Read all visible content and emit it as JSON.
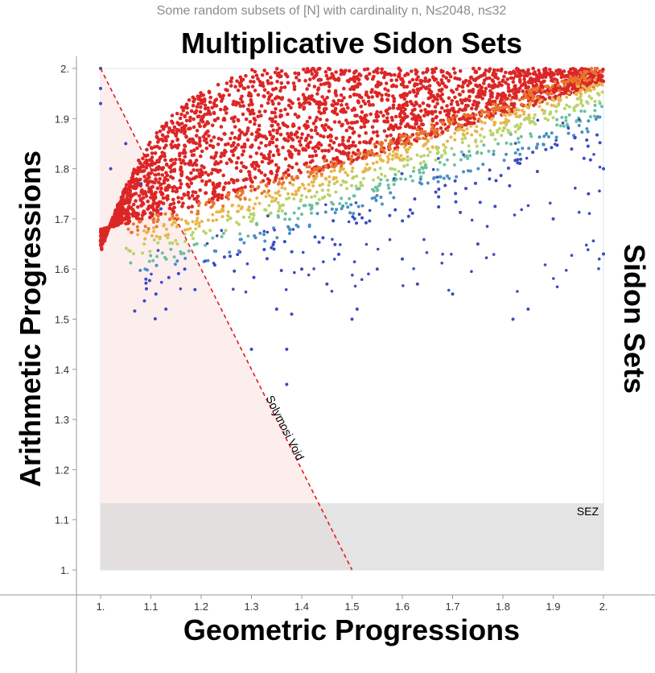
{
  "chart_data": {
    "type": "scatter",
    "subtitle": "Some random subsets of [N] with cardinality n, N≤2048, n≤32",
    "title": "Multiplicative Sidon Sets",
    "xlabel": "Geometric Progressions",
    "ylabel": "Arithmetic Progressions",
    "right_label": "Sidon Sets",
    "xlim": [
      1.0,
      2.0
    ],
    "ylim": [
      1.0,
      2.0
    ],
    "x_ticks": [
      "1.",
      "1.1",
      "1.2",
      "1.3",
      "1.4",
      "1.5",
      "1.6",
      "1.7",
      "1.8",
      "1.9",
      "2."
    ],
    "y_ticks": [
      "1.",
      "1.1",
      "1.2",
      "1.3",
      "1.4",
      "1.5",
      "1.6",
      "1.7",
      "1.8",
      "1.9",
      "2."
    ],
    "grid": false,
    "regions": {
      "solymosi_void": {
        "label": "Solymosi Void",
        "boundary_line": {
          "from": [
            1.0,
            2.0
          ],
          "to": [
            1.5,
            1.0
          ]
        },
        "color": "#fdeeee",
        "line_color": "#e41a1c"
      },
      "sez": {
        "label": "SEZ",
        "y_range": [
          1.0,
          1.133
        ],
        "color": "#d9d9d9"
      }
    },
    "color_scale": [
      "#3b4cc0",
      "#4a8fc4",
      "#6cc0a0",
      "#b9d36a",
      "#e8b64b",
      "#e8762f",
      "#dc2626"
    ],
    "dense_region_color": "#dc2626",
    "sample_points": [
      [
        1.0,
        2.0
      ],
      [
        1.0,
        1.96
      ],
      [
        1.0,
        1.93
      ],
      [
        1.02,
        1.8
      ],
      [
        1.05,
        1.85
      ],
      [
        1.08,
        1.77
      ],
      [
        1.12,
        1.72
      ],
      [
        1.13,
        1.52
      ],
      [
        1.09,
        1.58
      ],
      [
        1.11,
        1.55
      ],
      [
        1.3,
        1.44
      ],
      [
        1.37,
        1.44
      ],
      [
        1.37,
        1.37
      ],
      [
        1.35,
        1.52
      ],
      [
        1.38,
        1.51
      ],
      [
        1.45,
        1.57
      ],
      [
        1.5,
        1.5
      ],
      [
        1.51,
        1.52
      ],
      [
        1.63,
        1.57
      ],
      [
        1.82,
        1.5
      ],
      [
        1.85,
        1.52
      ],
      [
        2.0,
        1.63
      ],
      [
        1.4,
        1.6
      ],
      [
        1.6,
        1.62
      ],
      [
        1.75,
        1.65
      ],
      [
        1.9,
        1.7
      ],
      [
        1.97,
        1.75
      ],
      [
        2.0,
        1.8
      ],
      [
        1.7,
        1.55
      ],
      [
        1.55,
        1.6
      ]
    ]
  }
}
